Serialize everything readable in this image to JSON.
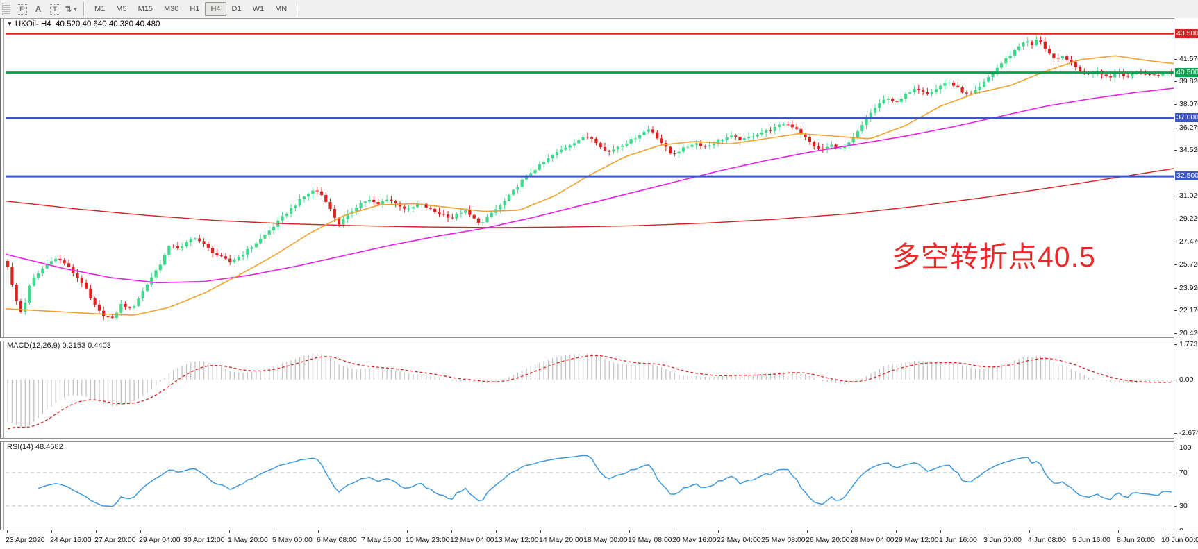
{
  "toolbar": {
    "tool_icons": [
      {
        "name": "chart-grid-icon",
        "glyph": "F"
      },
      {
        "name": "text-label-icon",
        "glyph": "A"
      },
      {
        "name": "text-box-icon",
        "glyph": "T"
      },
      {
        "name": "arrange-arrows-icon",
        "glyph": "⇅"
      }
    ],
    "timeframes": [
      "M1",
      "M5",
      "M15",
      "M30",
      "H1",
      "H4",
      "D1",
      "W1",
      "MN"
    ],
    "active_timeframe": "H4"
  },
  "chart": {
    "title": "UKOil-,H4",
    "ohlc_text": "40.520 40.640 40.380 40.480",
    "annotation": {
      "text": "多空转折点40.5",
      "color": "#e82a2a"
    }
  },
  "macd_panel": {
    "label": "MACD(12,26,9) 0.2153 0.4403",
    "axis_labels": [
      {
        "text": "1.773",
        "value": 1.773
      },
      {
        "text": "0.00",
        "value": 0
      },
      {
        "text": "-2.6741",
        "value": -2.6741
      }
    ]
  },
  "rsi_panel": {
    "label": "RSI(14) 48.4582",
    "axis_labels": [
      {
        "text": "100",
        "value": 100
      },
      {
        "text": "70",
        "value": 70
      },
      {
        "text": "30",
        "value": 30
      },
      {
        "text": "0",
        "value": 0
      }
    ]
  },
  "chart_data": {
    "type": "candlestick",
    "symbol": "UKOil-",
    "timeframe": "H4",
    "current_ohlc": {
      "open": 40.52,
      "high": 40.64,
      "low": 40.38,
      "close": 40.48
    },
    "visible_price_range": [
      20.15,
      44.6
    ],
    "n_candles": 268,
    "close_path": [
      [
        0.0,
        25.6
      ],
      [
        0.006,
        23.2
      ],
      [
        0.012,
        21.9
      ],
      [
        0.02,
        24.4
      ],
      [
        0.03,
        25.4
      ],
      [
        0.039,
        26.2
      ],
      [
        0.048,
        25.9
      ],
      [
        0.055,
        25.2
      ],
      [
        0.065,
        24.2
      ],
      [
        0.072,
        22.9
      ],
      [
        0.08,
        21.9
      ],
      [
        0.09,
        21.5
      ],
      [
        0.098,
        22.7
      ],
      [
        0.106,
        22.2
      ],
      [
        0.115,
        23.5
      ],
      [
        0.124,
        24.8
      ],
      [
        0.132,
        25.9
      ],
      [
        0.14,
        27.3
      ],
      [
        0.148,
        26.9
      ],
      [
        0.153,
        27.3
      ],
      [
        0.16,
        27.9
      ],
      [
        0.17,
        27.1
      ],
      [
        0.18,
        26.4
      ],
      [
        0.191,
        25.9
      ],
      [
        0.2,
        26.4
      ],
      [
        0.21,
        27.1
      ],
      [
        0.22,
        27.9
      ],
      [
        0.23,
        28.8
      ],
      [
        0.242,
        29.9
      ],
      [
        0.254,
        30.9
      ],
      [
        0.264,
        31.5
      ],
      [
        0.272,
        30.9
      ],
      [
        0.279,
        29.6
      ],
      [
        0.285,
        28.8
      ],
      [
        0.294,
        29.7
      ],
      [
        0.302,
        30.4
      ],
      [
        0.31,
        30.7
      ],
      [
        0.318,
        30.3
      ],
      [
        0.326,
        30.8
      ],
      [
        0.334,
        30.4
      ],
      [
        0.344,
        29.9
      ],
      [
        0.354,
        30.4
      ],
      [
        0.366,
        29.8
      ],
      [
        0.376,
        29.5
      ],
      [
        0.382,
        29.3
      ],
      [
        0.392,
        29.9
      ],
      [
        0.402,
        29.1
      ],
      [
        0.408,
        28.9
      ],
      [
        0.416,
        29.7
      ],
      [
        0.424,
        30.3
      ],
      [
        0.432,
        31.1
      ],
      [
        0.442,
        32.2
      ],
      [
        0.452,
        33.0
      ],
      [
        0.458,
        33.4
      ],
      [
        0.468,
        34.1
      ],
      [
        0.48,
        34.8
      ],
      [
        0.492,
        35.4
      ],
      [
        0.5,
        35.6
      ],
      [
        0.508,
        35.0
      ],
      [
        0.515,
        34.3
      ],
      [
        0.524,
        34.8
      ],
      [
        0.534,
        35.2
      ],
      [
        0.544,
        35.8
      ],
      [
        0.552,
        36.2
      ],
      [
        0.56,
        35.3
      ],
      [
        0.57,
        34.2
      ],
      [
        0.58,
        34.6
      ],
      [
        0.59,
        35.1
      ],
      [
        0.6,
        34.8
      ],
      [
        0.61,
        35.2
      ],
      [
        0.62,
        35.6
      ],
      [
        0.632,
        35.3
      ],
      [
        0.644,
        35.8
      ],
      [
        0.656,
        36.1
      ],
      [
        0.668,
        36.6
      ],
      [
        0.678,
        36.2
      ],
      [
        0.688,
        35.2
      ],
      [
        0.698,
        34.5
      ],
      [
        0.708,
        34.9
      ],
      [
        0.716,
        34.6
      ],
      [
        0.724,
        35.1
      ],
      [
        0.734,
        36.4
      ],
      [
        0.744,
        37.7
      ],
      [
        0.754,
        38.5
      ],
      [
        0.762,
        38.2
      ],
      [
        0.772,
        38.8
      ],
      [
        0.782,
        39.3
      ],
      [
        0.79,
        38.9
      ],
      [
        0.8,
        39.4
      ],
      [
        0.808,
        39.8
      ],
      [
        0.816,
        39.3
      ],
      [
        0.826,
        38.7
      ],
      [
        0.836,
        39.4
      ],
      [
        0.846,
        40.5
      ],
      [
        0.856,
        41.4
      ],
      [
        0.866,
        42.3
      ],
      [
        0.874,
        43.0
      ],
      [
        0.88,
        42.6
      ],
      [
        0.886,
        43.2
      ],
      [
        0.892,
        42.3
      ],
      [
        0.9,
        41.4
      ],
      [
        0.908,
        41.8
      ],
      [
        0.916,
        41.0
      ],
      [
        0.926,
        40.4
      ],
      [
        0.936,
        40.7
      ],
      [
        0.946,
        40.1
      ],
      [
        0.954,
        40.6
      ],
      [
        0.962,
        40.2
      ],
      [
        0.972,
        40.5
      ],
      [
        0.982,
        40.3
      ],
      [
        1.0,
        40.48
      ]
    ],
    "ma_orange": [
      [
        0,
        22.3
      ],
      [
        0.04,
        22.1
      ],
      [
        0.08,
        21.9
      ],
      [
        0.11,
        21.8
      ],
      [
        0.14,
        22.4
      ],
      [
        0.17,
        23.5
      ],
      [
        0.2,
        24.9
      ],
      [
        0.23,
        26.4
      ],
      [
        0.26,
        28.1
      ],
      [
        0.29,
        29.5
      ],
      [
        0.32,
        30.3
      ],
      [
        0.35,
        30.4
      ],
      [
        0.38,
        30.1
      ],
      [
        0.41,
        29.8
      ],
      [
        0.44,
        29.9
      ],
      [
        0.47,
        31.0
      ],
      [
        0.5,
        32.6
      ],
      [
        0.53,
        34.0
      ],
      [
        0.56,
        34.9
      ],
      [
        0.59,
        35.2
      ],
      [
        0.62,
        35.0
      ],
      [
        0.65,
        35.4
      ],
      [
        0.68,
        35.8
      ],
      [
        0.71,
        35.6
      ],
      [
        0.74,
        35.4
      ],
      [
        0.77,
        36.4
      ],
      [
        0.8,
        37.9
      ],
      [
        0.83,
        38.9
      ],
      [
        0.86,
        39.5
      ],
      [
        0.89,
        40.6
      ],
      [
        0.92,
        41.5
      ],
      [
        0.95,
        41.8
      ],
      [
        0.98,
        41.4
      ],
      [
        1.0,
        41.2
      ]
    ],
    "ma_magenta": [
      [
        0,
        26.5
      ],
      [
        0.05,
        25.4
      ],
      [
        0.09,
        24.7
      ],
      [
        0.13,
        24.3
      ],
      [
        0.17,
        24.4
      ],
      [
        0.21,
        24.9
      ],
      [
        0.25,
        25.6
      ],
      [
        0.29,
        26.4
      ],
      [
        0.33,
        27.2
      ],
      [
        0.37,
        27.9
      ],
      [
        0.41,
        28.5
      ],
      [
        0.45,
        29.3
      ],
      [
        0.49,
        30.2
      ],
      [
        0.53,
        31.1
      ],
      [
        0.57,
        32.0
      ],
      [
        0.61,
        32.9
      ],
      [
        0.65,
        33.7
      ],
      [
        0.69,
        34.4
      ],
      [
        0.73,
        35.0
      ],
      [
        0.77,
        35.6
      ],
      [
        0.81,
        36.3
      ],
      [
        0.85,
        37.1
      ],
      [
        0.89,
        37.9
      ],
      [
        0.93,
        38.5
      ],
      [
        0.97,
        39.0
      ],
      [
        1.0,
        39.3
      ]
    ],
    "ma_red": [
      [
        0,
        30.6
      ],
      [
        0.06,
        30.0
      ],
      [
        0.12,
        29.5
      ],
      [
        0.18,
        29.1
      ],
      [
        0.24,
        28.85
      ],
      [
        0.3,
        28.7
      ],
      [
        0.36,
        28.6
      ],
      [
        0.42,
        28.55
      ],
      [
        0.48,
        28.6
      ],
      [
        0.54,
        28.7
      ],
      [
        0.6,
        28.9
      ],
      [
        0.66,
        29.2
      ],
      [
        0.72,
        29.6
      ],
      [
        0.78,
        30.2
      ],
      [
        0.84,
        30.9
      ],
      [
        0.9,
        31.7
      ],
      [
        0.95,
        32.4
      ],
      [
        1.0,
        33.1
      ]
    ],
    "hlines": [
      {
        "price": 43.5,
        "color": "#dd2222",
        "width": 2.5,
        "badge": "43.500"
      },
      {
        "price": 40.5,
        "color": "#00a650",
        "width": 3,
        "badge": "40.500"
      },
      {
        "price": 37.0,
        "color": "#3a56c8",
        "width": 3,
        "badge": "37.000"
      },
      {
        "price": 32.5,
        "color": "#3a56c8",
        "width": 3,
        "badge": "32.500"
      }
    ],
    "bid_price": 40.43,
    "price_ticks": [
      {
        "text": "41.570",
        "value": 41.57
      },
      {
        "text": "39.820",
        "value": 39.82
      },
      {
        "text": "38.070",
        "value": 38.07
      },
      {
        "text": "36.270",
        "value": 36.27
      },
      {
        "text": "34.520",
        "value": 34.52
      },
      {
        "text": "31.020",
        "value": 31.02
      },
      {
        "text": "29.220",
        "value": 29.22
      },
      {
        "text": "27.470",
        "value": 27.47
      },
      {
        "text": "25.720",
        "value": 25.72
      },
      {
        "text": "23.920",
        "value": 23.92
      },
      {
        "text": "22.170",
        "value": 22.17
      },
      {
        "text": "20.420",
        "value": 20.42
      }
    ],
    "macd": {
      "params": [
        12,
        26,
        9
      ],
      "current_macd": 0.2153,
      "current_signal": 0.4403,
      "axis_max": 1.773,
      "axis_min": -2.6741,
      "histogram_color": "#c2c2c2",
      "signal_color": "#e02020"
    },
    "rsi": {
      "period": 14,
      "current": 48.4582,
      "levels": [
        70,
        30
      ],
      "range": [
        0,
        100
      ],
      "line_color": "#3d97dd"
    },
    "candle_up_color": "#3fd98c",
    "candle_down_color": "#e32020",
    "time_labels": [
      "23 Apr 2020",
      "24 Apr 16:00",
      "27 Apr 20:00",
      "29 Apr 04:00",
      "30 Apr 12:00",
      "1 May 20:00",
      "5 May 00:00",
      "6 May 08:00",
      "7 May 16:00",
      "10 May 23:00",
      "12 May 04:00",
      "13 May 12:00",
      "14 May 20:00",
      "18 May 00:00",
      "19 May 08:00",
      "20 May 16:00",
      "22 May 04:00",
      "25 May 08:00",
      "26 May 20:00",
      "28 May 04:00",
      "29 May 12:00",
      "1 Jun 16:00",
      "3 Jun 00:00",
      "4 Jun 08:00",
      "5 Jun 16:00",
      "8 Jun 20:00",
      "10 Jun 00:00"
    ]
  }
}
